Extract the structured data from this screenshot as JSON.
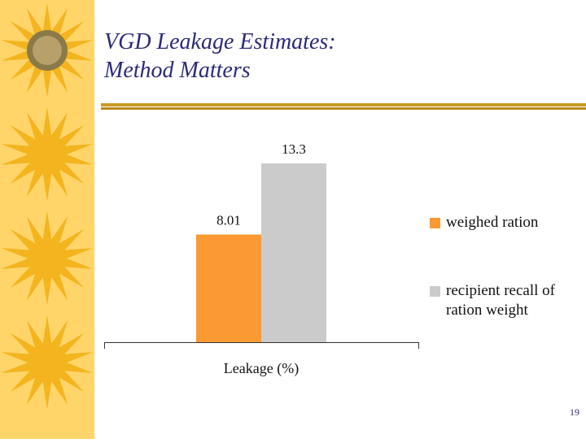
{
  "slide": {
    "title_line1": "VGD Leakage Estimates:",
    "title_line2": "Method Matters",
    "page_number": "19"
  },
  "colors": {
    "strip": "#ffd56a",
    "sun": "#f4b41e",
    "title": "#2a2a7a",
    "rule": "#c89a24"
  },
  "chart_data": {
    "type": "bar",
    "categories": [
      "Leakage (%)"
    ],
    "series": [
      {
        "name": "weighed ration",
        "values": [
          8.01
        ],
        "color": "#fb9a33"
      },
      {
        "name": "recipient recall of ration weight",
        "values": [
          13.3
        ],
        "color": "#cbcbcb"
      }
    ],
    "data_labels": [
      "8.01",
      "13.3"
    ],
    "ylim": [
      0,
      14.5
    ],
    "grid": false,
    "legend": "right"
  }
}
